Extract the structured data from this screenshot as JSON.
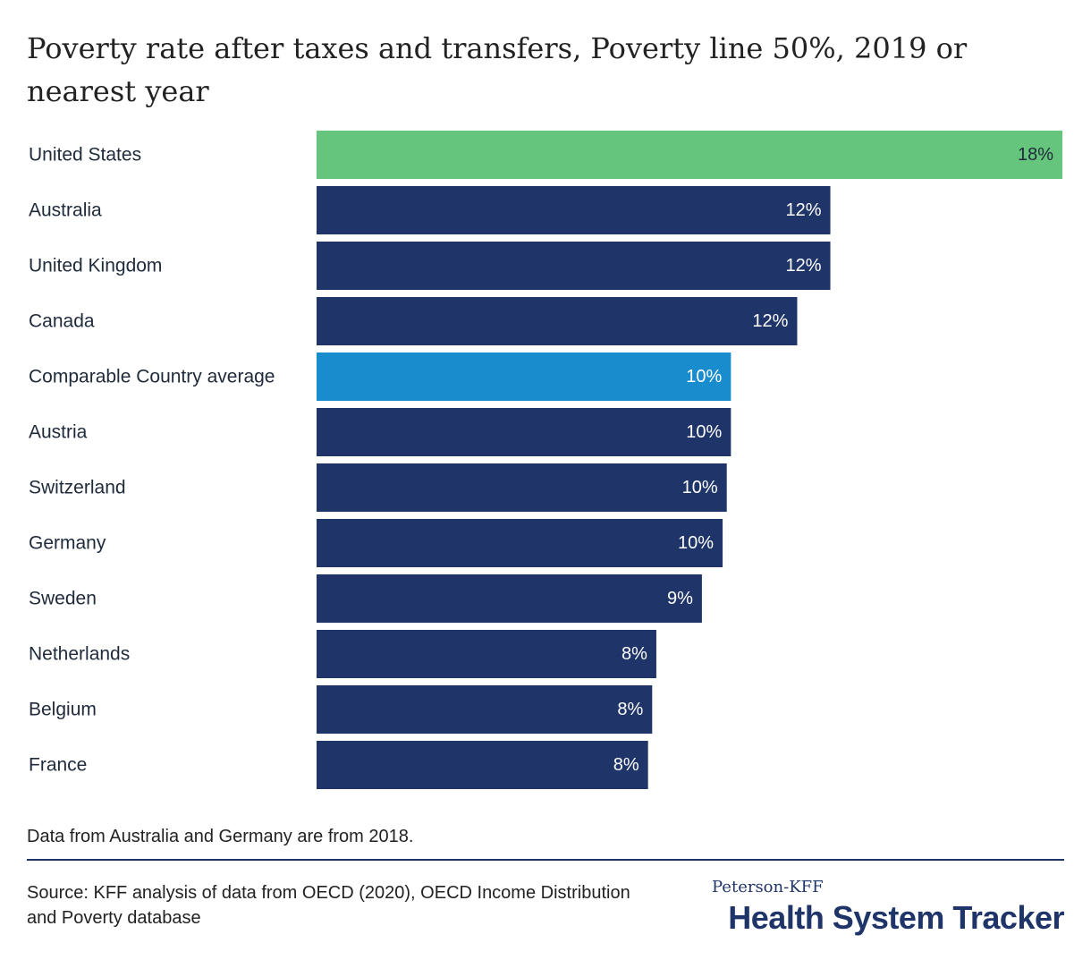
{
  "chart_data": {
    "type": "bar",
    "orientation": "horizontal",
    "title": "Poverty rate after taxes and transfers, Poverty line 50%, 2019 or nearest year",
    "categories": [
      "United States",
      "Australia",
      "United Kingdom",
      "Canada",
      "Comparable Country average",
      "Austria",
      "Switzerland",
      "Germany",
      "Sweden",
      "Netherlands",
      "Belgium",
      "France"
    ],
    "values": [
      18.0,
      12.4,
      12.4,
      11.6,
      10.0,
      10.0,
      9.9,
      9.8,
      9.3,
      8.2,
      8.1,
      8.0
    ],
    "value_labels": [
      "18%",
      "12%",
      "12%",
      "12%",
      "10%",
      "10%",
      "10%",
      "10%",
      "9%",
      "8%",
      "8%",
      "8%"
    ],
    "bar_colors": [
      "#65c57d",
      "#1f3468",
      "#1f3468",
      "#1f3468",
      "#198ccd",
      "#1f3468",
      "#1f3468",
      "#1f3468",
      "#1f3468",
      "#1f3468",
      "#1f3468",
      "#1f3468"
    ],
    "label_colors": [
      "#1f2a3a",
      "#ffffff",
      "#ffffff",
      "#ffffff",
      "#ffffff",
      "#ffffff",
      "#ffffff",
      "#ffffff",
      "#ffffff",
      "#ffffff",
      "#ffffff",
      "#ffffff"
    ],
    "xlim": [
      0,
      18
    ],
    "grid": false,
    "legend": "none"
  },
  "note": "Data from Australia and Germany are from 2018.",
  "source": "Source: KFF analysis of data from OECD (2020), OECD Income Distribution and Poverty database",
  "logo": {
    "top": "Peterson-KFF",
    "main": "Health System Tracker"
  }
}
